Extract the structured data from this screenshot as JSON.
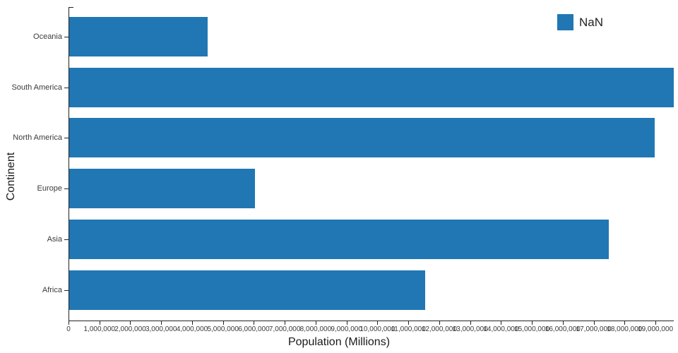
{
  "chart_data": {
    "type": "bar",
    "orientation": "horizontal",
    "title": "",
    "xlabel": "Population (Millions)",
    "ylabel": "Continent",
    "categories": [
      "Oceania",
      "South America",
      "North America",
      "Europe",
      "Asia",
      "Africa"
    ],
    "values": [
      4480000,
      19570000,
      18960000,
      6020000,
      17470000,
      11520000
    ],
    "xlim": [
      0,
      19570000
    ],
    "grid": false,
    "bar_color": "#2077b4",
    "x_ticks": [
      0,
      1000000,
      2000000,
      3000000,
      4000000,
      5000000,
      6000000,
      7000000,
      8000000,
      9000000,
      10000000,
      11000000,
      12000000,
      13000000,
      14000000,
      15000000,
      16000000,
      17000000,
      18000000,
      19000000
    ],
    "x_tick_labels": [
      "0",
      "1,000,000",
      "2,000,000",
      "3,000,000",
      "4,000,000",
      "5,000,000",
      "6,000,000",
      "7,000,000",
      "8,000,000",
      "9,000,000",
      "10,000,000",
      "11,000,000",
      "12,000,000",
      "13,000,000",
      "14,000,000",
      "15,000,000",
      "16,000,000",
      "17,000,000",
      "18,000,000",
      "19,000,000"
    ],
    "legend": {
      "label": "NaN",
      "color": "#2077b4",
      "position": "top-right"
    }
  }
}
